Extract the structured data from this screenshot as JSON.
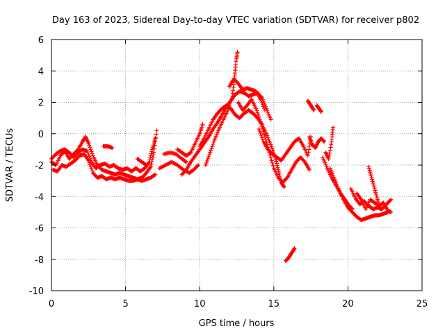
{
  "chart_data": {
    "type": "scatter",
    "title": "Day 163 of 2023, Sidereal Day-to-day VTEC variation (SDTVAR) for receiver p802",
    "xlabel": "GPS time / hours",
    "ylabel": "SDTVAR / TECUs",
    "xlim": [
      0,
      25
    ],
    "ylim": [
      -10,
      6
    ],
    "xticks": [
      0,
      5,
      10,
      15,
      20,
      25
    ],
    "yticks": [
      -10,
      -8,
      -6,
      -4,
      -2,
      0,
      2,
      4,
      6
    ],
    "grid": true,
    "marker": "+",
    "colors": {
      "series": "#ff0000",
      "axis": "#000000",
      "grid": "#a0a0a0"
    },
    "series": [
      {
        "name": "SDTVAR",
        "tracks": [
          [
            [
              0.0,
              -1.8
            ],
            [
              0.3,
              -2.0
            ],
            [
              0.6,
              -1.4
            ],
            [
              0.9,
              -1.1
            ],
            [
              1.2,
              -1.6
            ],
            [
              1.5,
              -1.3
            ],
            [
              1.8,
              -1.0
            ],
            [
              2.1,
              -0.5
            ],
            [
              2.3,
              -0.2
            ],
            [
              2.5,
              -0.6
            ],
            [
              2.8,
              -1.4
            ],
            [
              3.1,
              -2.0
            ],
            [
              3.4,
              -2.3
            ],
            [
              3.7,
              -2.4
            ],
            [
              4.0,
              -2.5
            ],
            [
              4.3,
              -2.6
            ],
            [
              4.6,
              -2.5
            ],
            [
              4.9,
              -2.6
            ],
            [
              5.2,
              -2.7
            ],
            [
              5.5,
              -2.8
            ],
            [
              5.8,
              -2.9
            ],
            [
              6.1,
              -2.8
            ],
            [
              6.4,
              -2.5
            ],
            [
              6.7,
              -2.1
            ],
            [
              6.9,
              -1.2
            ],
            [
              7.1,
              0.2
            ]
          ],
          [
            [
              0.1,
              -2.3
            ],
            [
              0.4,
              -2.4
            ],
            [
              0.7,
              -2.0
            ],
            [
              1.0,
              -2.1
            ],
            [
              1.3,
              -1.9
            ],
            [
              1.6,
              -1.7
            ],
            [
              1.9,
              -1.4
            ],
            [
              2.2,
              -1.3
            ],
            [
              2.5,
              -1.7
            ],
            [
              2.8,
              -2.5
            ],
            [
              3.1,
              -2.8
            ],
            [
              3.4,
              -2.7
            ],
            [
              3.7,
              -2.9
            ],
            [
              4.0,
              -2.8
            ],
            [
              4.3,
              -2.9
            ],
            [
              4.6,
              -2.8
            ],
            [
              4.9,
              -2.9
            ],
            [
              5.2,
              -3.0
            ],
            [
              5.5,
              -3.0
            ],
            [
              5.8,
              -2.9
            ],
            [
              6.1,
              -3.0
            ],
            [
              6.4,
              -2.9
            ],
            [
              6.7,
              -2.8
            ],
            [
              7.0,
              -2.6
            ]
          ],
          [
            [
              0.0,
              -1.6
            ],
            [
              0.3,
              -1.3
            ],
            [
              0.6,
              -1.1
            ],
            [
              0.9,
              -1.0
            ],
            [
              1.2,
              -1.2
            ],
            [
              1.5,
              -1.5
            ],
            [
              1.8,
              -1.2
            ],
            [
              2.1,
              -1.0
            ],
            [
              2.4,
              -1.1
            ],
            [
              2.7,
              -1.8
            ],
            [
              3.0,
              -2.2
            ],
            [
              3.3,
              -2.0
            ],
            [
              3.6,
              -1.9
            ],
            [
              3.9,
              -2.1
            ],
            [
              4.2,
              -2.0
            ],
            [
              4.5,
              -2.2
            ],
            [
              4.8,
              -2.3
            ],
            [
              5.1,
              -2.2
            ],
            [
              5.4,
              -2.4
            ],
            [
              5.7,
              -2.2
            ],
            [
              6.0,
              -2.4
            ],
            [
              6.3,
              -2.2
            ],
            [
              6.6,
              -1.8
            ],
            [
              6.8,
              -1.0
            ],
            [
              7.0,
              -0.3
            ]
          ],
          [
            [
              3.5,
              -0.8
            ],
            [
              3.8,
              -0.8
            ],
            [
              4.1,
              -0.9
            ]
          ],
          [
            [
              5.8,
              -1.6
            ],
            [
              6.1,
              -1.8
            ],
            [
              6.4,
              -2.0
            ]
          ],
          [
            [
              7.3,
              -2.2
            ],
            [
              7.7,
              -2.0
            ],
            [
              8.1,
              -1.8
            ],
            [
              8.5,
              -2.0
            ],
            [
              8.9,
              -2.3
            ],
            [
              9.3,
              -2.5
            ],
            [
              9.6,
              -2.3
            ],
            [
              9.9,
              -2.0
            ]
          ],
          [
            [
              7.6,
              -1.3
            ],
            [
              8.0,
              -1.2
            ],
            [
              8.4,
              -1.3
            ],
            [
              8.8,
              -1.6
            ],
            [
              9.1,
              -1.8
            ]
          ],
          [
            [
              8.5,
              -1.0
            ],
            [
              8.8,
              -1.2
            ],
            [
              9.1,
              -1.4
            ],
            [
              9.4,
              -1.2
            ],
            [
              9.7,
              -0.6
            ],
            [
              10.0,
              0.0
            ],
            [
              10.2,
              0.6
            ]
          ],
          [
            [
              8.8,
              -2.6
            ],
            [
              9.1,
              -2.3
            ],
            [
              9.4,
              -1.8
            ],
            [
              9.7,
              -1.4
            ],
            [
              10.0,
              -1.0
            ],
            [
              10.3,
              -0.6
            ],
            [
              10.6,
              -0.2
            ],
            [
              10.9,
              0.3
            ],
            [
              11.2,
              0.7
            ],
            [
              11.5,
              1.2
            ],
            [
              11.8,
              1.7
            ],
            [
              12.1,
              2.1
            ],
            [
              12.4,
              2.5
            ],
            [
              12.7,
              2.7
            ],
            [
              13.0,
              2.6
            ],
            [
              13.3,
              2.4
            ],
            [
              13.6,
              2.5
            ],
            [
              13.9,
              2.6
            ],
            [
              14.2,
              2.3
            ],
            [
              14.5,
              1.6
            ],
            [
              14.8,
              0.9
            ]
          ],
          [
            [
              10.0,
              -0.8
            ],
            [
              10.3,
              -0.3
            ],
            [
              10.6,
              0.3
            ],
            [
              10.9,
              0.9
            ],
            [
              11.2,
              1.3
            ],
            [
              11.5,
              1.6
            ],
            [
              11.8,
              1.8
            ],
            [
              12.1,
              1.6
            ],
            [
              12.4,
              1.2
            ],
            [
              12.7,
              1.0
            ],
            [
              13.0,
              1.3
            ],
            [
              13.3,
              1.5
            ],
            [
              13.6,
              1.3
            ],
            [
              13.9,
              1.0
            ],
            [
              14.2,
              0.6
            ],
            [
              14.5,
              0.0
            ],
            [
              14.8,
              -0.7
            ],
            [
              15.1,
              -1.5
            ],
            [
              15.3,
              -2.3
            ],
            [
              15.5,
              -3.1
            ],
            [
              15.7,
              -3.4
            ]
          ],
          [
            [
              10.4,
              -2.0
            ],
            [
              10.7,
              -1.2
            ],
            [
              11.0,
              -0.4
            ],
            [
              11.3,
              0.3
            ],
            [
              11.6,
              0.9
            ],
            [
              11.9,
              1.5
            ],
            [
              12.2,
              2.4
            ],
            [
              12.35,
              3.5
            ],
            [
              12.45,
              4.6
            ],
            [
              12.55,
              5.2
            ]
          ],
          [
            [
              12.0,
              3.0
            ],
            [
              12.3,
              3.5
            ],
            [
              12.6,
              3.2
            ],
            [
              12.9,
              2.8
            ],
            [
              13.2,
              2.9
            ],
            [
              13.5,
              2.8
            ],
            [
              13.8,
              2.7
            ],
            [
              14.1,
              2.2
            ],
            [
              14.4,
              1.5
            ]
          ],
          [
            [
              12.6,
              2.0
            ],
            [
              12.9,
              1.5
            ],
            [
              13.2,
              1.8
            ],
            [
              13.5,
              2.2
            ],
            [
              13.8,
              1.6
            ],
            [
              14.1,
              0.8
            ],
            [
              14.4,
              -0.2
            ],
            [
              14.7,
              -1.2
            ],
            [
              15.0,
              -2.2
            ],
            [
              15.3,
              -2.8
            ],
            [
              15.6,
              -3.1
            ],
            [
              15.9,
              -2.8
            ],
            [
              16.2,
              -2.3
            ],
            [
              16.5,
              -1.8
            ],
            [
              16.8,
              -1.5
            ],
            [
              17.1,
              -1.8
            ],
            [
              17.4,
              -2.3
            ]
          ],
          [
            [
              14.0,
              0.3
            ],
            [
              14.3,
              -0.5
            ],
            [
              14.6,
              -1.0
            ],
            [
              14.9,
              -1.3
            ],
            [
              15.2,
              -1.5
            ],
            [
              15.5,
              -1.7
            ],
            [
              15.8,
              -1.3
            ],
            [
              16.1,
              -0.9
            ],
            [
              16.4,
              -0.5
            ],
            [
              16.7,
              -0.3
            ],
            [
              17.0,
              -0.8
            ],
            [
              17.3,
              -1.4
            ],
            [
              17.5,
              -0.2
            ]
          ],
          [
            [
              15.8,
              -8.1
            ],
            [
              16.0,
              -7.9
            ],
            [
              16.2,
              -7.6
            ],
            [
              16.4,
              -7.3
            ]
          ],
          [
            [
              17.3,
              2.1
            ],
            [
              17.5,
              1.8
            ],
            [
              17.7,
              1.5
            ]
          ],
          [
            [
              17.9,
              1.8
            ],
            [
              18.05,
              1.6
            ],
            [
              18.2,
              1.4
            ]
          ],
          [
            [
              17.4,
              -0.2
            ],
            [
              17.6,
              -0.7
            ],
            [
              17.8,
              -0.9
            ],
            [
              18.0,
              -0.5
            ],
            [
              18.2,
              -0.3
            ],
            [
              18.4,
              -0.5
            ]
          ],
          [
            [
              18.5,
              -1.2
            ],
            [
              18.7,
              -1.6
            ],
            [
              18.9,
              -0.5
            ],
            [
              19.0,
              0.4
            ]
          ],
          [
            [
              18.3,
              -1.5
            ],
            [
              18.6,
              -2.2
            ],
            [
              18.9,
              -2.8
            ],
            [
              19.2,
              -3.3
            ],
            [
              19.5,
              -3.8
            ],
            [
              19.8,
              -4.2
            ],
            [
              20.1,
              -4.6
            ],
            [
              20.3,
              -4.8
            ]
          ],
          [
            [
              18.8,
              -2.2
            ],
            [
              19.1,
              -2.9
            ],
            [
              19.4,
              -3.6
            ],
            [
              19.7,
              -4.2
            ],
            [
              20.0,
              -4.7
            ],
            [
              20.3,
              -5.0
            ],
            [
              20.6,
              -5.3
            ],
            [
              20.9,
              -5.5
            ],
            [
              21.2,
              -5.4
            ],
            [
              21.5,
              -5.3
            ],
            [
              21.8,
              -5.2
            ],
            [
              22.1,
              -5.2
            ],
            [
              22.4,
              -5.1
            ],
            [
              22.7,
              -5.0
            ]
          ],
          [
            [
              20.2,
              -3.5
            ],
            [
              20.5,
              -4.1
            ],
            [
              20.8,
              -4.5
            ],
            [
              21.1,
              -4.3
            ],
            [
              21.4,
              -4.6
            ],
            [
              21.7,
              -4.8
            ],
            [
              22.0,
              -4.7
            ],
            [
              22.3,
              -4.8
            ],
            [
              22.6,
              -4.5
            ],
            [
              22.9,
              -4.2
            ]
          ],
          [
            [
              20.6,
              -3.8
            ],
            [
              20.9,
              -4.2
            ],
            [
              21.2,
              -4.8
            ],
            [
              21.5,
              -4.2
            ],
            [
              21.8,
              -4.4
            ],
            [
              22.1,
              -4.6
            ],
            [
              22.4,
              -4.4
            ],
            [
              22.7,
              -4.9
            ],
            [
              22.9,
              -5.0
            ]
          ],
          [
            [
              21.4,
              -2.1
            ],
            [
              21.6,
              -2.8
            ],
            [
              21.8,
              -3.5
            ],
            [
              22.0,
              -4.2
            ],
            [
              22.2,
              -4.8
            ]
          ]
        ]
      }
    ]
  }
}
